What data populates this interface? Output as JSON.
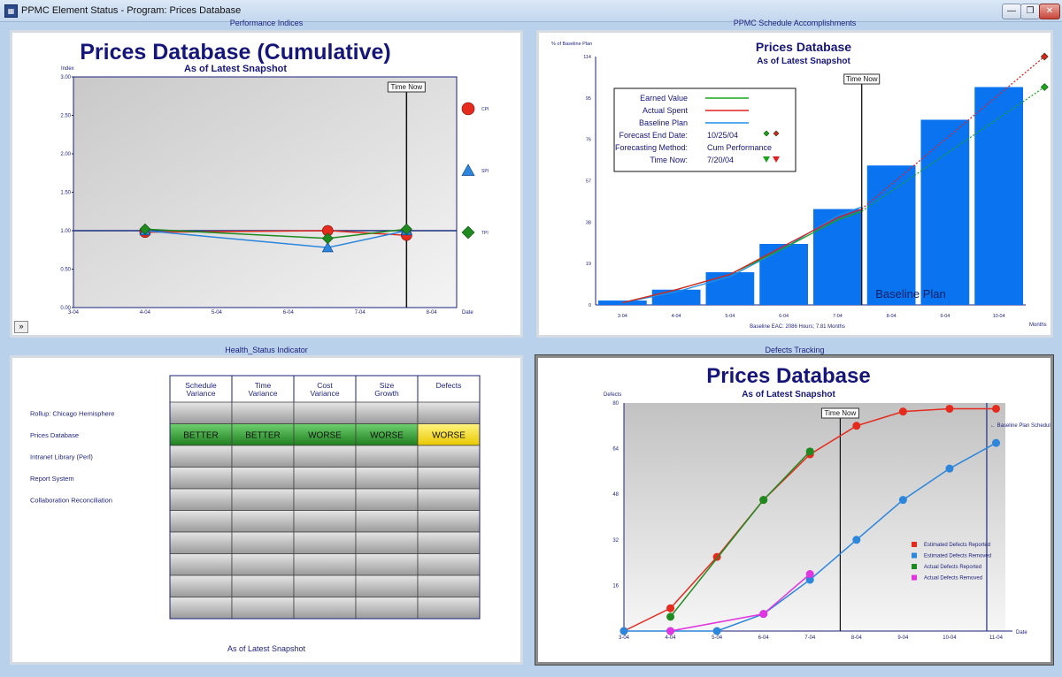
{
  "window": {
    "title": "PPMC Element Status - Program: Prices Database",
    "minimize": "—",
    "maximize": "❐",
    "close": "✕"
  },
  "panel_titles": {
    "perf": "Performance Indices",
    "sched": "PPMC Schedule Accomplishments",
    "health": "Health_Status Indicator",
    "defects": "Defects Tracking"
  },
  "perf": {
    "expand_label": "»",
    "chart_data": {
      "type": "line",
      "title": "Prices Database (Cumulative)",
      "subtitle": "As of Latest Snapshot",
      "ylabel": "Index",
      "xlabel": "Date",
      "ylim": [
        0,
        3
      ],
      "yticks": [
        "0.00",
        "0.50",
        "1.00",
        "1.50",
        "2.00",
        "2.50",
        "3.00"
      ],
      "xticks": [
        "3-04",
        "4-04",
        "5-04",
        "6-04",
        "7-04",
        "8-04"
      ],
      "time_now_label": "Time Now",
      "time_now_x": 4.65,
      "reference_y": 1.0,
      "series": [
        {
          "name": "CPI",
          "color": "#e52a1e",
          "marker": "circle",
          "x": [
            1.0,
            3.55,
            4.65
          ],
          "values": [
            0.98,
            1.0,
            0.94
          ]
        },
        {
          "name": "SPI",
          "color": "#2b86dc",
          "marker": "triangle",
          "x": [
            1.0,
            3.55,
            4.65
          ],
          "values": [
            1.0,
            0.78,
            1.0
          ]
        },
        {
          "name": "TPI",
          "color": "#1f8a1f",
          "marker": "diamond",
          "x": [
            1.0,
            3.55,
            4.65
          ],
          "values": [
            1.02,
            0.9,
            1.02
          ]
        }
      ]
    }
  },
  "sched": {
    "chart_data": {
      "type": "bar",
      "title": "Prices Database",
      "subtitle": "As of Latest Snapshot",
      "ylabel": "% of Baseline Plan",
      "xlabel": "Months",
      "ylim": [
        0,
        114
      ],
      "yticks": [
        "0",
        "19",
        "38",
        "57",
        "76",
        "95",
        "114"
      ],
      "categories": [
        "3-04",
        "4-04",
        "5-04",
        "6-04",
        "7-04",
        "8-04",
        "9-04",
        "10-04"
      ],
      "values": [
        2,
        7,
        15,
        28,
        44,
        64,
        85,
        100
      ],
      "bar_color": "#0a73f0",
      "bar_label": "Baseline Plan",
      "footnote": "Baseline EAC: 2086 Hours; 7.81 Months",
      "time_now_label": "Time Now",
      "time_now_x": 4.45,
      "earned_value": {
        "color": "#1aa51a",
        "x": [
          0,
          1,
          2,
          3,
          4,
          4.45
        ],
        "values": [
          1,
          7,
          14,
          26,
          39,
          43
        ]
      },
      "actual_spent": {
        "color": "#e02020",
        "x": [
          0,
          1,
          2,
          3,
          4,
          4.45
        ],
        "values": [
          1,
          7,
          14,
          27,
          40,
          44
        ]
      },
      "baseline_plan_line": {
        "color": "#1d8fe8",
        "x": [
          0,
          1,
          2,
          3,
          4,
          4.45
        ],
        "values": [
          1,
          6,
          13,
          26,
          41,
          45
        ]
      },
      "forecast_green": {
        "x": [
          4.45,
          7.85
        ],
        "values": [
          43,
          100
        ]
      },
      "forecast_red": {
        "x": [
          4.45,
          7.85
        ],
        "values": [
          44,
          114
        ]
      },
      "legend": [
        {
          "label": "Earned Value",
          "value": "",
          "color": "#1aa51a"
        },
        {
          "label": "Actual Spent",
          "value": "",
          "color": "#e02020"
        },
        {
          "label": "Baseline Plan",
          "value": "",
          "color": "#1d8fe8"
        },
        {
          "label": "Forecast End Date:",
          "value": "10/25/04",
          "color": ""
        },
        {
          "label": "Forecasting Method:",
          "value": "Cum Performance",
          "color": ""
        },
        {
          "label": "Time Now:",
          "value": "7/20/04",
          "color": ""
        }
      ]
    }
  },
  "health": {
    "columns": [
      "Schedule Variance",
      "Time Variance",
      "Cost Variance",
      "Size Growth",
      "Defects"
    ],
    "row_labels": [
      "Rollup: Chicago Hemisphere",
      "Prices Database",
      "Intranet Library (Perl)",
      "Report System",
      "Collaboration Reconciliation"
    ],
    "cells": [
      [
        "",
        "",
        "",
        "",
        ""
      ],
      [
        "BETTER",
        "BETTER",
        "WORSE",
        "WORSE",
        "WORSE"
      ],
      [
        "",
        "",
        "",
        "",
        ""
      ],
      [
        "",
        "",
        "",
        "",
        ""
      ],
      [
        "",
        "",
        "",
        "",
        ""
      ],
      [
        "",
        "",
        "",
        "",
        ""
      ],
      [
        "",
        "",
        "",
        "",
        ""
      ],
      [
        "",
        "",
        "",
        "",
        ""
      ],
      [
        "",
        "",
        "",
        "",
        ""
      ],
      [
        "",
        "",
        "",
        "",
        ""
      ]
    ],
    "cell_colors": {
      "BETTER": "#2e9b2e",
      "WORSE_green": "#2e9b2e",
      "WORSE_yellow": "#f0e030",
      "empty": "#bdbdbd"
    },
    "status_fill": [
      [
        null,
        null,
        null,
        null,
        null
      ],
      [
        "green",
        "green",
        "green",
        "green",
        "yellow"
      ]
    ],
    "footer": "As of Latest Snapshot"
  },
  "defects": {
    "chart_data": {
      "type": "line",
      "title": "Prices Database",
      "subtitle": "As of Latest Snapshot",
      "ylabel": "Defects",
      "xlabel": "Date",
      "ylim": [
        0,
        80
      ],
      "yticks": [
        "16",
        "32",
        "48",
        "64",
        "80"
      ],
      "xticks": [
        "3-04",
        "4-04",
        "5-04",
        "6-04",
        "7-04",
        "8-04",
        "9-04",
        "10-04",
        "11-04"
      ],
      "time_now_label": "Time Now",
      "time_now_x": 4.65,
      "baseline_x": 7.8,
      "baseline_label": "Baseline Plan Schedule",
      "series": [
        {
          "name": "Estimated Defects Reported",
          "color": "#e52a1e",
          "x": [
            0,
            1,
            2,
            3,
            4,
            5,
            6,
            7,
            8
          ],
          "values": [
            0,
            8,
            26,
            46,
            62,
            72,
            77,
            78,
            78
          ]
        },
        {
          "name": "Estimated Defects Removed",
          "color": "#2b86dc",
          "x": [
            0,
            1,
            2,
            3,
            4,
            5,
            6,
            7,
            8
          ],
          "values": [
            0,
            0,
            0,
            6,
            18,
            32,
            46,
            57,
            66
          ]
        },
        {
          "name": "Actual Defects Reported",
          "color": "#1f8a1f",
          "x": [
            1,
            3,
            4
          ],
          "values": [
            5,
            46,
            63
          ]
        },
        {
          "name": "Actual Defects Removed",
          "color": "#e035e0",
          "x": [
            1,
            3,
            4
          ],
          "values": [
            0,
            6,
            20
          ]
        }
      ]
    }
  }
}
